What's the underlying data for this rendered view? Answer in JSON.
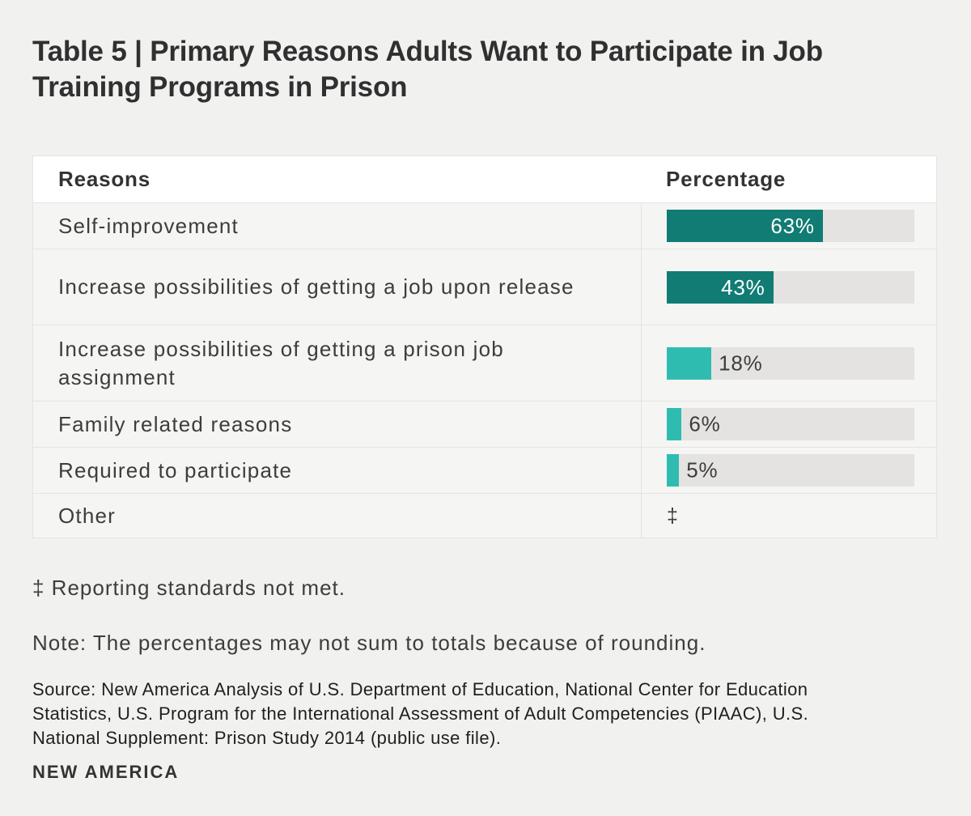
{
  "header": {
    "title_line1": "Table 5 | Primary Reasons Adults Want to Participate in Job",
    "title_line2": "Training Programs in Prison"
  },
  "table": {
    "headers": [
      "Reasons",
      "Percentage"
    ],
    "rows": [
      {
        "reason": "Self-improvement",
        "value": 63,
        "display": "63%",
        "fill": "#117c74",
        "label_position": "inside"
      },
      {
        "reason": "Increase possibilities of getting a job upon release",
        "value": 43,
        "display": "43%",
        "fill": "#117c74",
        "label_position": "inside"
      },
      {
        "reason": "Increase possibilities of getting a prison job assignment",
        "value": 18,
        "display": "18%",
        "fill": "#2fbcb0",
        "label_position": "outside"
      },
      {
        "reason": "Family related reasons",
        "value": 6,
        "display": "6%",
        "fill": "#2fbcb0",
        "label_position": "outside"
      },
      {
        "reason": "Required to participate",
        "value": 5,
        "display": "5%",
        "fill": "#2fbcb0",
        "label_position": "outside"
      },
      {
        "reason": "Other",
        "value": null,
        "display": "‡",
        "fill": null,
        "label_position": "none"
      }
    ]
  },
  "footer": {
    "footnote": "‡ Reporting standards not met.",
    "note": "Note: The percentages may not sum to totals because of rounding.",
    "source_lines": [
      "Source: New America Analysis of U.S. Department of Education, National Center for Education",
      "Statistics, U.S. Program for the International Assessment of Adult Competencies (PIAAC), U.S.",
      "National Supplement: Prison Study 2014 (public use file)."
    ],
    "logo": "NEW AMERICA"
  },
  "colors": {
    "page_background": "#f1f1f0",
    "row_background": "#f5f5f4",
    "header_background": "#ffffff",
    "border": "#e5e4e2",
    "bar_dark_teal": "#117c74",
    "bar_light_teal": "#2fbcb0",
    "bar_track": "#e4e3e1",
    "text_dark": "#3d3d3d"
  },
  "chart_data": {
    "type": "bar",
    "orientation": "horizontal",
    "title": "Table 5 | Primary Reasons Adults Want to Participate in Job Training Programs in Prison",
    "columns": [
      "Reasons",
      "Percentage"
    ],
    "categories": [
      "Self-improvement",
      "Increase possibilities of getting a job upon release",
      "Increase possibilities of getting a prison job assignment",
      "Family related reasons",
      "Required to participate",
      "Other"
    ],
    "values": [
      63,
      43,
      18,
      6,
      5,
      null
    ],
    "value_labels": [
      "63%",
      "43%",
      "18%",
      "6%",
      "5%",
      "‡"
    ],
    "xlim": [
      0,
      100
    ],
    "bar_colors": [
      "#117c74",
      "#117c74",
      "#2fbcb0",
      "#2fbcb0",
      "#2fbcb0",
      null
    ],
    "track_color": "#e4e3e1",
    "legend": null,
    "grid": false,
    "footnote": "‡ Reporting standards not met.",
    "note": "Note: The percentages may not sum to totals because of rounding.",
    "source": "Source: New America Analysis of U.S. Department of Education, National Center for Education Statistics, U.S. Program for the International Assessment of Adult Competencies (PIAAC), U.S. National Supplement: Prison Study 2014 (public use file)."
  }
}
